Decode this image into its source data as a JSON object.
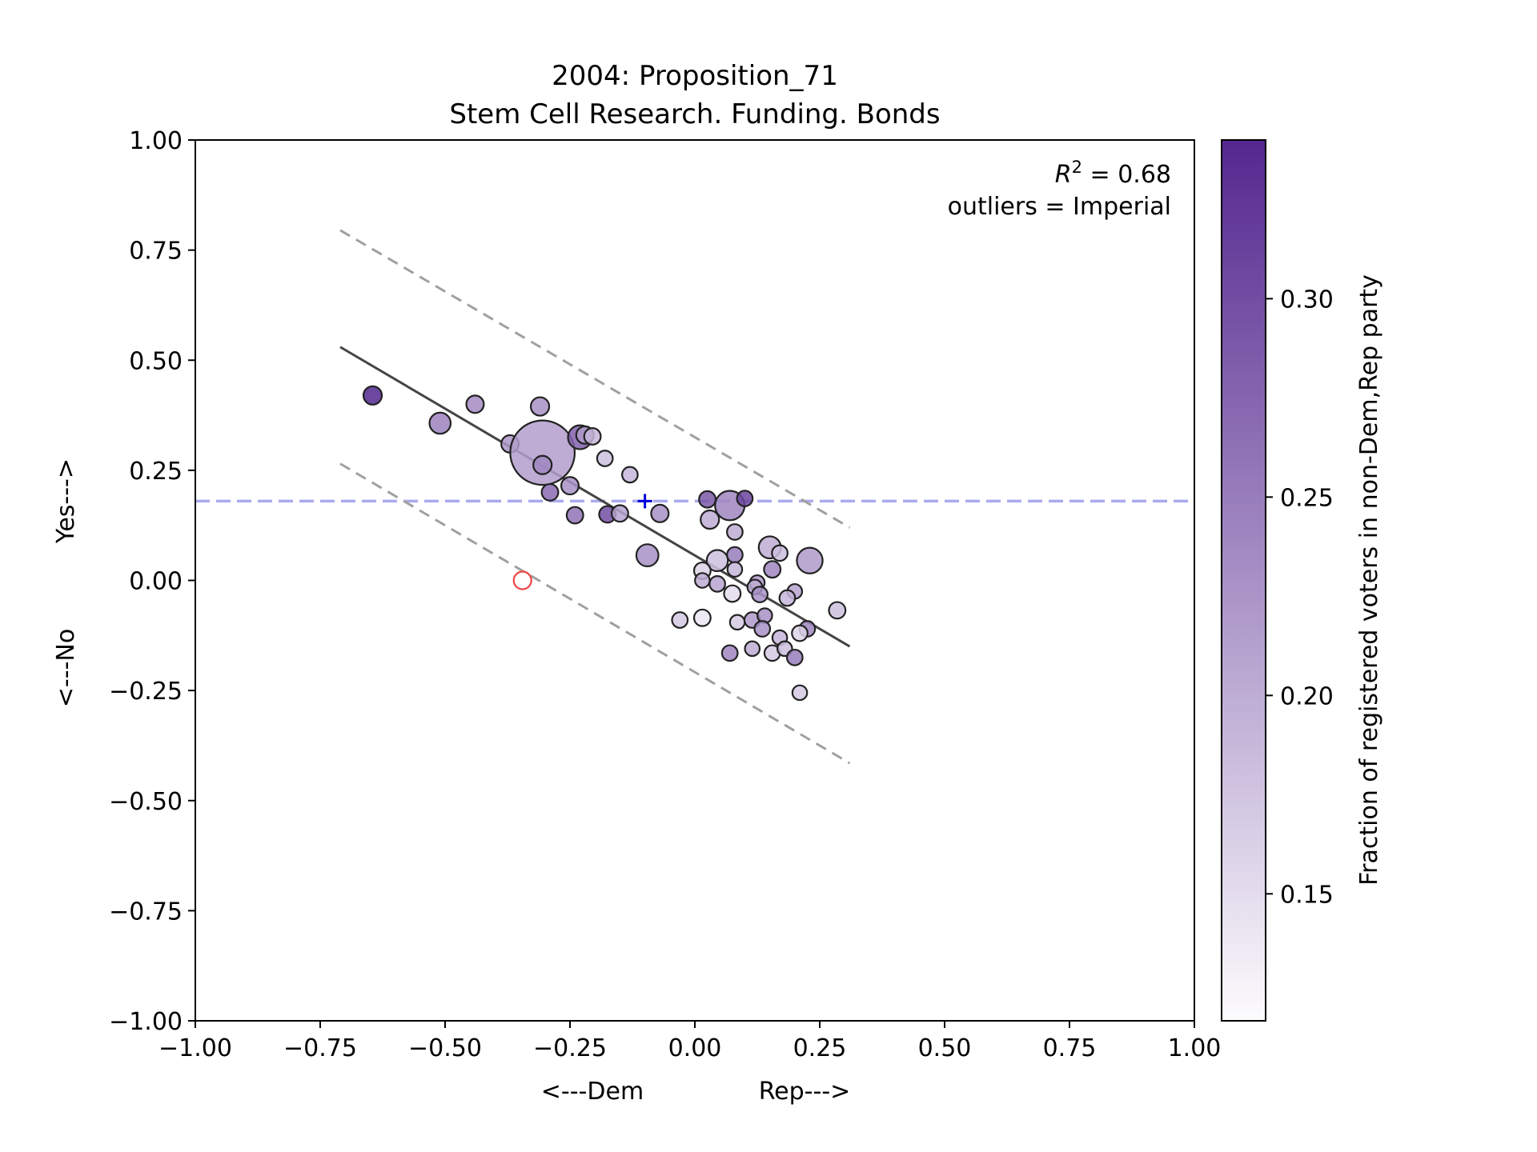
{
  "chart_data": {
    "type": "scatter",
    "title": "2004: Proposition_71",
    "subtitle": "Stem Cell Research. Funding. Bonds",
    "xlabel_left": "<---Dem",
    "xlabel_right": "Rep--->",
    "ylabel_bottom": "<---No",
    "ylabel_top": "Yes--->",
    "xlim": [
      -1.0,
      1.0
    ],
    "ylim": [
      -1.0,
      1.0
    ],
    "x_ticks": [
      -1.0,
      -0.75,
      -0.5,
      -0.25,
      0.0,
      0.25,
      0.5,
      0.75,
      1.0
    ],
    "y_ticks": [
      -1.0,
      -0.75,
      -0.5,
      -0.25,
      0.0,
      0.25,
      0.5,
      0.75,
      1.0
    ],
    "x_tick_labels": [
      "−1.00",
      "−0.75",
      "−0.50",
      "−0.25",
      "0.00",
      "0.25",
      "0.50",
      "0.75",
      "1.00"
    ],
    "y_tick_labels": [
      "−1.00",
      "−0.75",
      "−0.50",
      "−0.25",
      "0.00",
      "0.25",
      "0.50",
      "0.75",
      "1.00"
    ],
    "annotation_r2": "R",
    "annotation_r2_value": " = 0.68",
    "annotation_outliers": "outliers = Imperial",
    "grid": false,
    "colorbar": {
      "label": "Fraction of registered voters in non-Dem,Rep party",
      "range": [
        0.118,
        0.34
      ],
      "ticks": [
        0.15,
        0.2,
        0.25,
        0.3
      ],
      "tick_labels": [
        "0.15",
        "0.20",
        "0.25",
        "0.30"
      ],
      "color_low": "#fcfbfd",
      "color_high": "#54278f"
    },
    "fit_line": {
      "x": [
        -0.71,
        0.31
      ],
      "y": [
        0.53,
        -0.15
      ],
      "color": "#444444"
    },
    "band_upper": {
      "x": [
        -0.71,
        0.31
      ],
      "y": [
        0.795,
        0.12
      ],
      "color": "#a0a0a0"
    },
    "band_lower": {
      "x": [
        -0.71,
        0.31
      ],
      "y": [
        0.265,
        -0.415
      ],
      "color": "#a0a0a0"
    },
    "reference_line": {
      "y": 0.18,
      "color": "#aaaaee"
    },
    "state_marker": {
      "x": -0.1,
      "y": 0.18,
      "color": "#0000dd"
    },
    "outlier_point": {
      "x": -0.345,
      "y": 0.0,
      "color": "#ee4444"
    },
    "points": [
      {
        "x": -0.645,
        "y": 0.42,
        "s": 1.0,
        "c": 0.34
      },
      {
        "x": -0.51,
        "y": 0.357,
        "s": 1.15,
        "c": 0.245
      },
      {
        "x": -0.44,
        "y": 0.4,
        "s": 0.95,
        "c": 0.235
      },
      {
        "x": -0.31,
        "y": 0.395,
        "s": 1.0,
        "c": 0.23
      },
      {
        "x": -0.37,
        "y": 0.31,
        "s": 0.95,
        "c": 0.225
      },
      {
        "x": -0.305,
        "y": 0.29,
        "s": 3.5,
        "c": 0.215
      },
      {
        "x": -0.305,
        "y": 0.262,
        "s": 1.0,
        "c": 0.24
      },
      {
        "x": -0.23,
        "y": 0.325,
        "s": 1.3,
        "c": 0.28
      },
      {
        "x": -0.22,
        "y": 0.33,
        "s": 0.95,
        "c": 0.22
      },
      {
        "x": -0.205,
        "y": 0.327,
        "s": 0.9,
        "c": 0.19
      },
      {
        "x": -0.18,
        "y": 0.277,
        "s": 0.85,
        "c": 0.18
      },
      {
        "x": -0.13,
        "y": 0.24,
        "s": 0.85,
        "c": 0.19
      },
      {
        "x": -0.25,
        "y": 0.215,
        "s": 0.95,
        "c": 0.23
      },
      {
        "x": -0.29,
        "y": 0.2,
        "s": 0.9,
        "c": 0.27
      },
      {
        "x": -0.24,
        "y": 0.148,
        "s": 0.9,
        "c": 0.26
      },
      {
        "x": -0.175,
        "y": 0.15,
        "s": 0.9,
        "c": 0.3
      },
      {
        "x": -0.15,
        "y": 0.152,
        "s": 0.9,
        "c": 0.21
      },
      {
        "x": -0.07,
        "y": 0.152,
        "s": 0.95,
        "c": 0.23
      },
      {
        "x": -0.095,
        "y": 0.057,
        "s": 1.2,
        "c": 0.23
      },
      {
        "x": 0.025,
        "y": 0.184,
        "s": 0.9,
        "c": 0.29
      },
      {
        "x": 0.07,
        "y": 0.17,
        "s": 1.6,
        "c": 0.24
      },
      {
        "x": 0.1,
        "y": 0.186,
        "s": 0.85,
        "c": 0.31
      },
      {
        "x": 0.03,
        "y": 0.138,
        "s": 1.0,
        "c": 0.2
      },
      {
        "x": 0.08,
        "y": 0.11,
        "s": 0.85,
        "c": 0.2
      },
      {
        "x": 0.08,
        "y": 0.058,
        "s": 0.85,
        "c": 0.25
      },
      {
        "x": 0.15,
        "y": 0.075,
        "s": 1.2,
        "c": 0.2
      },
      {
        "x": 0.17,
        "y": 0.062,
        "s": 0.85,
        "c": 0.18
      },
      {
        "x": 0.23,
        "y": 0.045,
        "s": 1.4,
        "c": 0.22
      },
      {
        "x": 0.045,
        "y": 0.045,
        "s": 1.15,
        "c": 0.18
      },
      {
        "x": 0.015,
        "y": 0.022,
        "s": 0.9,
        "c": 0.16
      },
      {
        "x": 0.08,
        "y": 0.025,
        "s": 0.8,
        "c": 0.19
      },
      {
        "x": 0.155,
        "y": 0.025,
        "s": 0.9,
        "c": 0.24
      },
      {
        "x": 0.015,
        "y": 0.0,
        "s": 0.8,
        "c": 0.2
      },
      {
        "x": 0.045,
        "y": -0.008,
        "s": 0.85,
        "c": 0.21
      },
      {
        "x": 0.125,
        "y": -0.005,
        "s": 0.8,
        "c": 0.22
      },
      {
        "x": 0.12,
        "y": -0.015,
        "s": 0.8,
        "c": 0.2
      },
      {
        "x": 0.075,
        "y": -0.03,
        "s": 0.9,
        "c": 0.15
      },
      {
        "x": 0.13,
        "y": -0.032,
        "s": 0.85,
        "c": 0.23
      },
      {
        "x": 0.2,
        "y": -0.025,
        "s": 0.8,
        "c": 0.21
      },
      {
        "x": 0.185,
        "y": -0.04,
        "s": 0.85,
        "c": 0.19
      },
      {
        "x": 0.285,
        "y": -0.068,
        "s": 0.9,
        "c": 0.18
      },
      {
        "x": -0.03,
        "y": -0.09,
        "s": 0.85,
        "c": 0.17
      },
      {
        "x": 0.015,
        "y": -0.085,
        "s": 0.9,
        "c": 0.14
      },
      {
        "x": 0.085,
        "y": -0.095,
        "s": 0.8,
        "c": 0.17
      },
      {
        "x": 0.115,
        "y": -0.09,
        "s": 0.85,
        "c": 0.22
      },
      {
        "x": 0.14,
        "y": -0.08,
        "s": 0.8,
        "c": 0.23
      },
      {
        "x": 0.135,
        "y": -0.11,
        "s": 0.85,
        "c": 0.23
      },
      {
        "x": 0.225,
        "y": -0.11,
        "s": 0.85,
        "c": 0.24
      },
      {
        "x": 0.21,
        "y": -0.12,
        "s": 0.85,
        "c": 0.16
      },
      {
        "x": 0.17,
        "y": -0.13,
        "s": 0.8,
        "c": 0.19
      },
      {
        "x": 0.115,
        "y": -0.155,
        "s": 0.8,
        "c": 0.2
      },
      {
        "x": 0.07,
        "y": -0.165,
        "s": 0.85,
        "c": 0.24
      },
      {
        "x": 0.155,
        "y": -0.165,
        "s": 0.85,
        "c": 0.17
      },
      {
        "x": 0.18,
        "y": -0.155,
        "s": 0.8,
        "c": 0.18
      },
      {
        "x": 0.2,
        "y": -0.175,
        "s": 0.85,
        "c": 0.25
      },
      {
        "x": 0.21,
        "y": -0.255,
        "s": 0.8,
        "c": 0.17
      }
    ]
  }
}
